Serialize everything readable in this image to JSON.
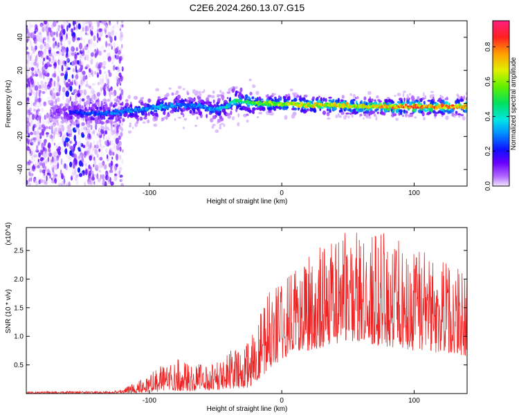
{
  "chart_data": [
    {
      "type": "heatmap",
      "title": "C2E6.2024.260.13.07.G15",
      "xlabel": "Height of straight line (km)",
      "ylabel": "Frequency (Hz)",
      "xlim": [
        -193,
        140
      ],
      "ylim": [
        -50,
        50
      ],
      "xticks": [
        -100,
        0,
        100
      ],
      "xtick_labels": [
        "-100",
        "0",
        "100"
      ],
      "yticks": [
        -40,
        -20,
        0,
        20,
        40
      ],
      "ytick_labels": [
        "-40",
        "-20",
        "0",
        "20",
        "40"
      ],
      "colorbar": {
        "label": "Normalized spectral amplitude",
        "range": [
          0,
          0.95
        ],
        "ticks": [
          0,
          0.2,
          0.4,
          0.6,
          0.8
        ],
        "tick_labels": [
          "0.0",
          "0.2",
          "0.4",
          "0.6",
          "0.8"
        ],
        "colormap": "rainbow (violet → blue → cyan → green → yellow → orange → red → magenta)"
      },
      "ridge": {
        "description": "dominant frequency ridge vs height",
        "x": [
          -190,
          -170,
          -150,
          -130,
          -110,
          -90,
          -75,
          -60,
          -50,
          -42,
          -36,
          -30,
          -20,
          -10,
          0,
          20,
          40,
          60,
          80,
          100,
          120,
          140
        ],
        "y": [
          -6,
          -5,
          -6,
          -6,
          -4,
          -2,
          -1,
          -2,
          -4,
          -2,
          2,
          1,
          0,
          0,
          0,
          -1,
          -1,
          -2,
          -2,
          -2,
          -2,
          -2
        ],
        "amplitude": [
          0.05,
          0.15,
          0.25,
          0.3,
          0.3,
          0.35,
          0.3,
          0.3,
          0.35,
          0.4,
          0.45,
          0.5,
          0.55,
          0.6,
          0.65,
          0.7,
          0.7,
          0.7,
          0.75,
          0.8,
          0.85,
          0.8
        ]
      },
      "scatter_region": {
        "description": "broadband scattered noise",
        "x": [
          -193,
          -120
        ],
        "y": [
          -50,
          50
        ]
      }
    },
    {
      "type": "line",
      "title": "",
      "xlabel": "Height of straight line (km)",
      "ylabel": "SNR (10 * v/v)",
      "y_multiplier": "(x10^4)",
      "xlim": [
        -193,
        140
      ],
      "ylim": [
        0,
        2.9
      ],
      "xticks": [
        -100,
        0,
        100
      ],
      "xtick_labels": [
        "-100",
        "0",
        "100"
      ],
      "yticks": [
        0.5,
        1.0,
        1.5,
        2.0,
        2.5
      ],
      "ytick_labels": [
        "0.5",
        "1.0",
        "1.5",
        "2.0",
        "2.5"
      ],
      "color": "#ee2222",
      "series": [
        {
          "name": "SNR",
          "x": [
            -193,
            -170,
            -150,
            -130,
            -120,
            -110,
            -100,
            -90,
            -80,
            -70,
            -60,
            -50,
            -40,
            -30,
            -25,
            -20,
            -15,
            -10,
            0,
            10,
            20,
            30,
            40,
            50,
            60,
            70,
            80,
            90,
            100,
            110,
            120,
            130,
            140
          ],
          "y_lower": [
            0.0,
            0.0,
            0.0,
            0.0,
            0.01,
            0.01,
            0.02,
            0.04,
            0.05,
            0.04,
            0.05,
            0.06,
            0.08,
            0.1,
            0.1,
            0.2,
            0.3,
            0.4,
            0.6,
            0.7,
            0.75,
            0.8,
            0.85,
            0.9,
            0.9,
            0.85,
            0.8,
            0.8,
            0.75,
            0.75,
            0.7,
            0.7,
            0.65
          ],
          "y_upper": [
            0.04,
            0.05,
            0.05,
            0.05,
            0.08,
            0.2,
            0.35,
            0.5,
            0.65,
            0.55,
            0.55,
            0.6,
            0.75,
            0.8,
            0.95,
            1.3,
            1.5,
            1.8,
            2.0,
            2.15,
            2.4,
            2.6,
            2.75,
            2.85,
            2.85,
            2.85,
            2.8,
            2.7,
            2.6,
            2.5,
            2.35,
            2.3,
            2.35
          ]
        }
      ]
    }
  ]
}
